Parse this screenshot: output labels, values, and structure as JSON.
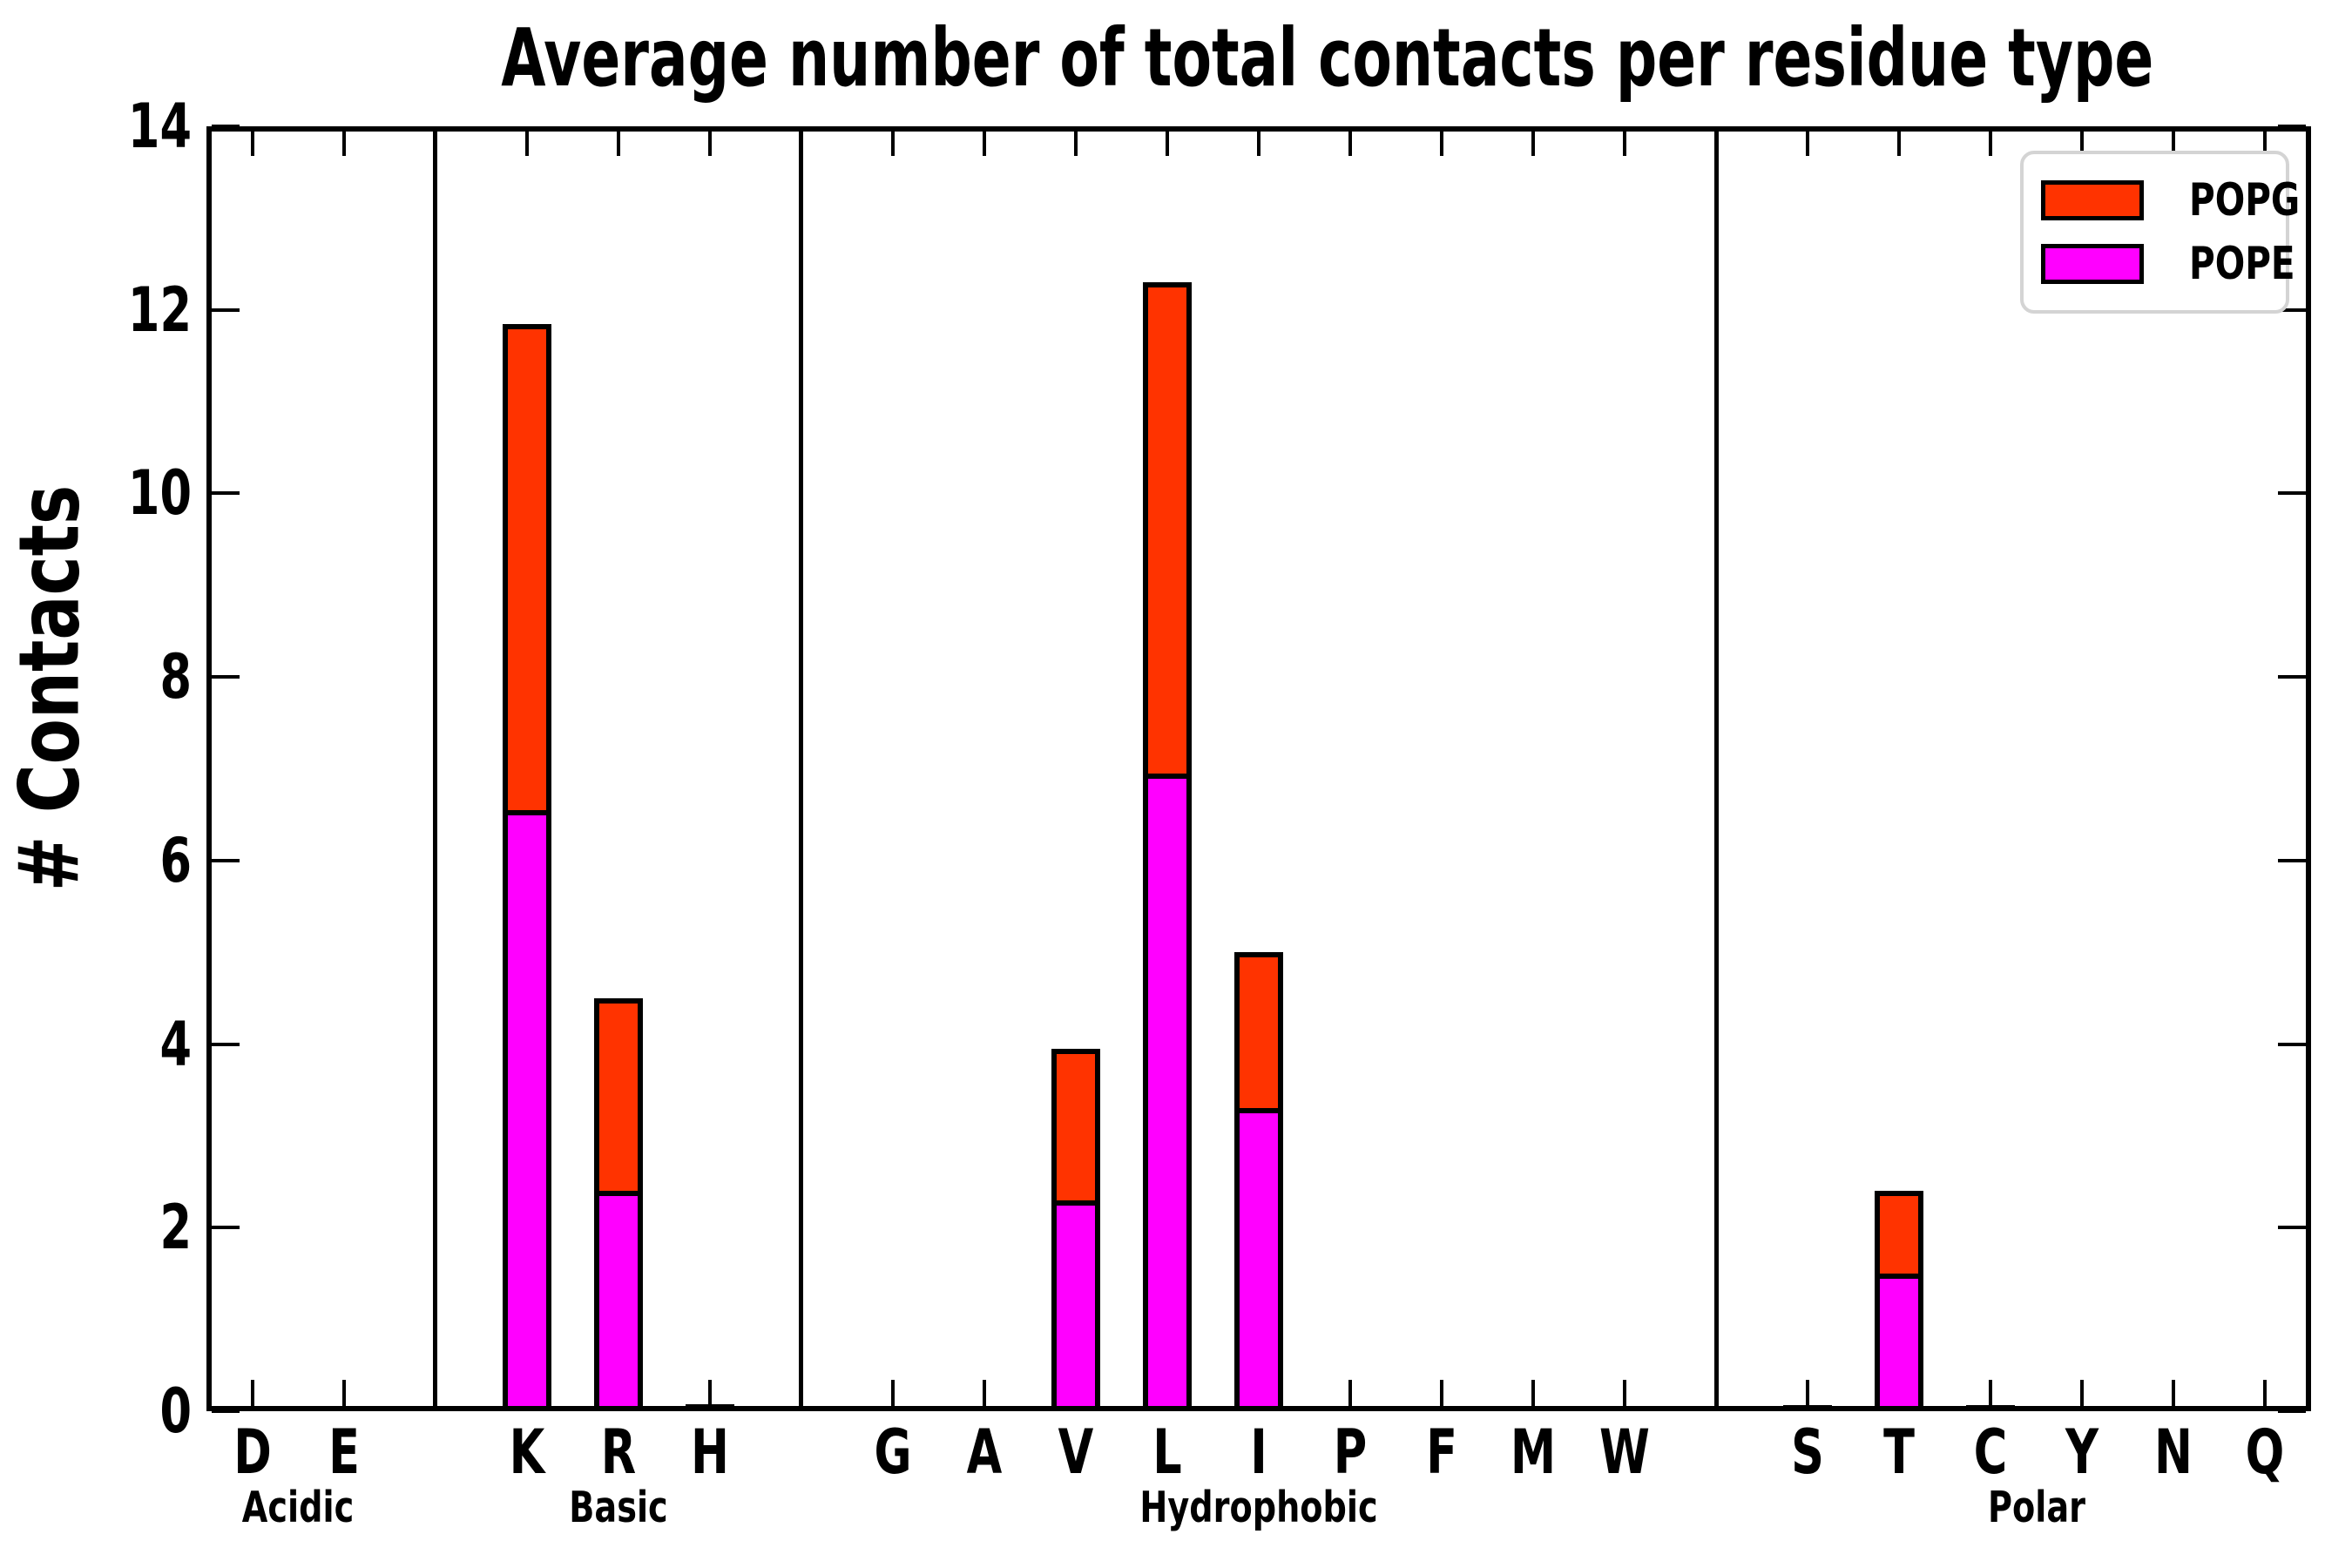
{
  "chart_data": {
    "type": "bar",
    "stacked": true,
    "title": "Average number of total contacts per residue type",
    "ylabel": "# Contacts",
    "ylim": [
      0,
      14
    ],
    "yticks": [
      0,
      2,
      4,
      6,
      8,
      10,
      12,
      14
    ],
    "grid": false,
    "legend_position": "upper right",
    "legend": [
      {
        "label": "POPG",
        "color": "#FF3300"
      },
      {
        "label": "POPE",
        "color": "#FF00FF"
      }
    ],
    "series_note": "stacked bars: POPE (magenta) bottom segment, POPG (red) top segment",
    "groups": [
      {
        "label": "Acidic",
        "residues": [
          {
            "label": "D",
            "POPE": 0.02,
            "POPG": 0.01
          },
          {
            "label": "E",
            "POPE": 0.02,
            "POPG": 0.02
          }
        ]
      },
      {
        "label": "Basic",
        "residues": [
          {
            "label": "K",
            "POPE": 6.55,
            "POPG": 5.3
          },
          {
            "label": "R",
            "POPE": 2.4,
            "POPG": 2.1
          },
          {
            "label": "H",
            "POPE": 0.03,
            "POPG": 0.03
          }
        ]
      },
      {
        "label": "Hydrophobic",
        "residues": [
          {
            "label": "G",
            "POPE": 0.02,
            "POPG": 0.01
          },
          {
            "label": "A",
            "POPE": 0.02,
            "POPG": 0.02
          },
          {
            "label": "V",
            "POPE": 2.3,
            "POPG": 1.65
          },
          {
            "label": "L",
            "POPE": 6.95,
            "POPG": 5.35
          },
          {
            "label": "I",
            "POPE": 3.3,
            "POPG": 1.7
          },
          {
            "label": "P",
            "POPE": 0.02,
            "POPG": 0.01
          },
          {
            "label": "F",
            "POPE": 0.02,
            "POPG": 0.02
          },
          {
            "label": "M",
            "POPE": 0.02,
            "POPG": 0.02
          },
          {
            "label": "W",
            "POPE": 0.02,
            "POPG": 0.02
          }
        ]
      },
      {
        "label": "Polar",
        "residues": [
          {
            "label": "S",
            "POPE": 0.03,
            "POPG": 0.02
          },
          {
            "label": "T",
            "POPE": 1.5,
            "POPG": 0.9
          },
          {
            "label": "C",
            "POPE": 0.03,
            "POPG": 0.02
          },
          {
            "label": "Y",
            "POPE": 0.02,
            "POPG": 0.01
          },
          {
            "label": "N",
            "POPE": 0.02,
            "POPG": 0.02
          },
          {
            "label": "Q",
            "POPE": 0.02,
            "POPG": 0.01
          }
        ]
      }
    ]
  },
  "colors": {
    "popg_red": "#FF3300",
    "pope_magenta": "#FF00FF",
    "axis_black": "#000000",
    "legend_border_gray": "#d4d4d4",
    "background": "#ffffff"
  }
}
